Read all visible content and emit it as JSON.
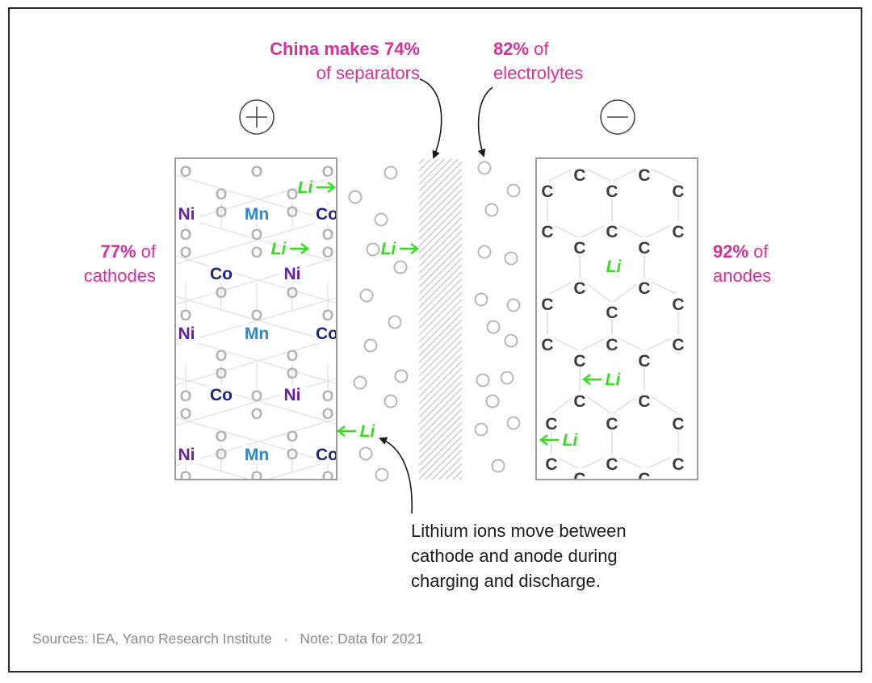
{
  "labels": {
    "separators": {
      "bold": "China makes 74%",
      "rest": "of separators"
    },
    "electrolytes": {
      "bold": "82%",
      "rest_line1": "of",
      "rest_line2": "electrolytes"
    },
    "cathodes": {
      "bold": "77%",
      "rest_line1": "of",
      "rest_line2": "cathodes"
    },
    "anodes": {
      "bold": "92%",
      "rest_line1": "of",
      "rest_line2": "anodes"
    }
  },
  "terminals": {
    "positive_icon": "plus-circle-icon",
    "negative_icon": "minus-circle-icon"
  },
  "elements": {
    "oxygen": "O",
    "nickel": "Ni",
    "manganese": "Mn",
    "cobalt": "Co",
    "carbon": "C",
    "lithium": "Li"
  },
  "note": {
    "line1": "Lithium ions move between",
    "line2": "cathode and anode during",
    "line3": "charging and discharge."
  },
  "footer": {
    "sources": "Sources: IEA, Yano Research Institute",
    "separator_dot": "•",
    "note": "Note: Data for 2021"
  },
  "colors": {
    "magenta": "#d6309c",
    "lithium_green": "#33dd22",
    "nickel_purple": "#6a1fa0",
    "manganese_blue": "#2f86c8",
    "cobalt_navy": "#1d2583",
    "carbon_gray": "#3c3c3c",
    "oxygen_gray": "#b4b4b4"
  }
}
